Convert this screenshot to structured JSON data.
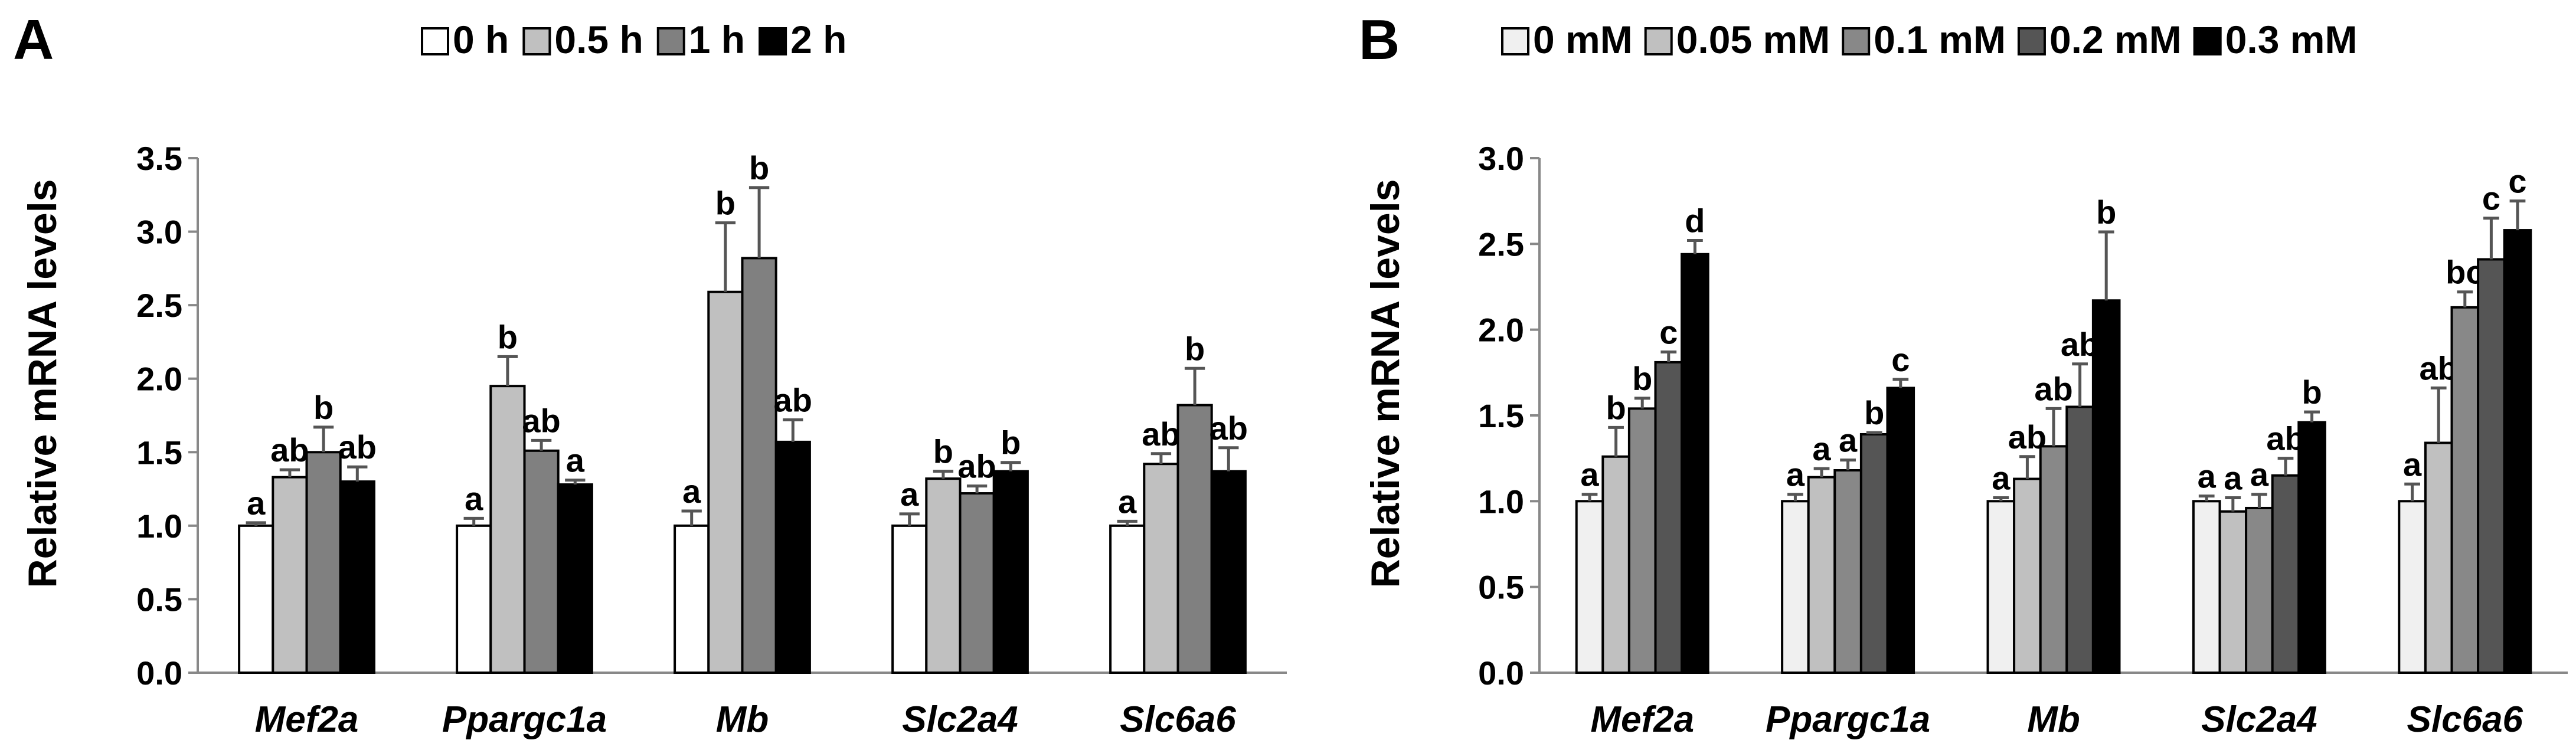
{
  "chart_data": [
    {
      "type": "bar",
      "panel_label": "A",
      "ylabel": "Relative mRNA levels",
      "ylim": [
        0,
        3.5
      ],
      "yticks": [
        "0.0",
        "0.5",
        "1.0",
        "1.5",
        "2.0",
        "2.5",
        "3.0",
        "3.5"
      ],
      "ytick_values": [
        0,
        0.5,
        1,
        1.5,
        2,
        2.5,
        3,
        3.5
      ],
      "categories": [
        "Mef2a",
        "Ppargc1a",
        "Mb",
        "Slc2a4",
        "Slc6a6"
      ],
      "legend_position": "top",
      "series": [
        {
          "name": "0 h",
          "color": "#ffffff",
          "values": [
            1.0,
            1.0,
            1.0,
            1.0,
            1.0
          ],
          "errors": [
            0.02,
            0.05,
            0.1,
            0.08,
            0.03
          ],
          "labels": [
            "a",
            "a",
            "a",
            "a",
            "a"
          ]
        },
        {
          "name": "0.5 h",
          "color": "#c0c0c0",
          "values": [
            1.33,
            1.95,
            2.59,
            1.32,
            1.42
          ],
          "errors": [
            0.05,
            0.2,
            0.47,
            0.05,
            0.07
          ],
          "labels": [
            "ab",
            "b",
            "b",
            "b",
            "ab"
          ]
        },
        {
          "name": "1 h",
          "color": "#808080",
          "values": [
            1.5,
            1.51,
            2.82,
            1.22,
            1.82
          ],
          "errors": [
            0.17,
            0.07,
            0.48,
            0.05,
            0.25
          ],
          "labels": [
            "b",
            "ab",
            "b",
            "ab",
            "b"
          ]
        },
        {
          "name": "2 h",
          "color": "#000000",
          "values": [
            1.3,
            1.28,
            1.57,
            1.37,
            1.37
          ],
          "errors": [
            0.1,
            0.03,
            0.15,
            0.06,
            0.16
          ],
          "labels": [
            "ab",
            "a",
            "ab",
            "b",
            "ab"
          ]
        }
      ]
    },
    {
      "type": "bar",
      "panel_label": "B",
      "ylabel": "Relative mRNA levels",
      "ylim": [
        0,
        3.0
      ],
      "yticks": [
        "0.0",
        "0.5",
        "1.0",
        "1.5",
        "2.0",
        "2.5",
        "3.0"
      ],
      "ytick_values": [
        0,
        0.5,
        1,
        1.5,
        2,
        2.5,
        3
      ],
      "categories": [
        "Mef2a",
        "Ppargc1a",
        "Mb",
        "Slc2a4",
        "Slc6a6"
      ],
      "legend_position": "top",
      "series": [
        {
          "name": "0 mM",
          "color": "#f0f0f0",
          "values": [
            1.0,
            1.0,
            1.0,
            1.0,
            1.0
          ],
          "errors": [
            0.04,
            0.04,
            0.02,
            0.03,
            0.1
          ],
          "labels": [
            "a",
            "a",
            "a",
            "a",
            "a"
          ]
        },
        {
          "name": "0.05 mM",
          "color": "#c0c0c0",
          "values": [
            1.26,
            1.14,
            1.13,
            0.94,
            1.34
          ],
          "errors": [
            0.17,
            0.05,
            0.13,
            0.08,
            0.32
          ],
          "labels": [
            "b",
            "a",
            "ab",
            "a",
            "ab"
          ]
        },
        {
          "name": "0.1 mM",
          "color": "#888888",
          "values": [
            1.54,
            1.18,
            1.32,
            0.96,
            2.13
          ],
          "errors": [
            0.06,
            0.06,
            0.22,
            0.08,
            0.09
          ],
          "labels": [
            "b",
            "a",
            "ab",
            "a",
            "bc"
          ]
        },
        {
          "name": "0.2 mM",
          "color": "#555555",
          "values": [
            1.81,
            1.39,
            1.55,
            1.15,
            2.41
          ],
          "errors": [
            0.06,
            0.01,
            0.25,
            0.1,
            0.24
          ],
          "labels": [
            "c",
            "b",
            "ab",
            "ab",
            "c"
          ]
        },
        {
          "name": "0.3 mM",
          "color": "#000000",
          "values": [
            2.44,
            1.66,
            2.17,
            1.46,
            2.58
          ],
          "errors": [
            0.08,
            0.05,
            0.4,
            0.06,
            0.17
          ],
          "labels": [
            "d",
            "c",
            "b",
            "b",
            "c"
          ]
        }
      ]
    }
  ]
}
